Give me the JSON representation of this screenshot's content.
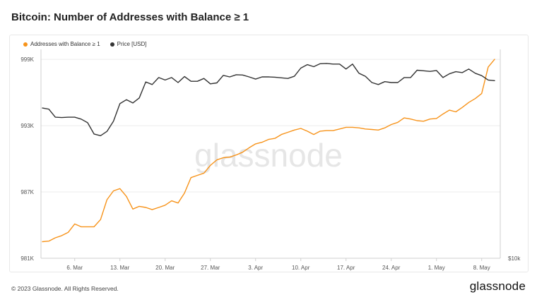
{
  "title": "Bitcoin: Number of Addresses with Balance ≥ 1",
  "footer": "© 2023 Glassnode. All Rights Reserved.",
  "brand": "glassnode",
  "watermark": "glassnode",
  "legend": [
    {
      "label": "Addresses with Balance ≥ 1",
      "color": "#f7931a"
    },
    {
      "label": "Price [USD]",
      "color": "#333333"
    }
  ],
  "chart_data": {
    "type": "line",
    "title": "Bitcoin: Number of Addresses with Balance ≥ 1",
    "x": [
      "2023-03-01",
      "2023-03-02",
      "2023-03-03",
      "2023-03-04",
      "2023-03-05",
      "2023-03-06",
      "2023-03-07",
      "2023-03-08",
      "2023-03-09",
      "2023-03-10",
      "2023-03-11",
      "2023-03-12",
      "2023-03-13",
      "2023-03-14",
      "2023-03-15",
      "2023-03-16",
      "2023-03-17",
      "2023-03-18",
      "2023-03-19",
      "2023-03-20",
      "2023-03-21",
      "2023-03-22",
      "2023-03-23",
      "2023-03-24",
      "2023-03-25",
      "2023-03-26",
      "2023-03-27",
      "2023-03-28",
      "2023-03-29",
      "2023-03-30",
      "2023-03-31",
      "2023-04-01",
      "2023-04-02",
      "2023-04-03",
      "2023-04-04",
      "2023-04-05",
      "2023-04-06",
      "2023-04-07",
      "2023-04-08",
      "2023-04-09",
      "2023-04-10",
      "2023-04-11",
      "2023-04-12",
      "2023-04-13",
      "2023-04-14",
      "2023-04-15",
      "2023-04-16",
      "2023-04-17",
      "2023-04-18",
      "2023-04-19",
      "2023-04-20",
      "2023-04-21",
      "2023-04-22",
      "2023-04-23",
      "2023-04-24",
      "2023-04-25",
      "2023-04-26",
      "2023-04-27",
      "2023-04-28",
      "2023-04-29",
      "2023-04-30",
      "2023-05-01",
      "2023-05-02",
      "2023-05-03",
      "2023-05-04",
      "2023-05-05",
      "2023-05-06",
      "2023-05-07",
      "2023-05-08",
      "2023-05-09",
      "2023-05-10"
    ],
    "x_ticks": [
      {
        "date": "2023-03-06",
        "label": "6. Mar"
      },
      {
        "date": "2023-03-13",
        "label": "13. Mar"
      },
      {
        "date": "2023-03-20",
        "label": "20. Mar"
      },
      {
        "date": "2023-03-27",
        "label": "27. Mar"
      },
      {
        "date": "2023-04-03",
        "label": "3. Apr"
      },
      {
        "date": "2023-04-10",
        "label": "10. Apr"
      },
      {
        "date": "2023-04-17",
        "label": "17. Apr"
      },
      {
        "date": "2023-04-24",
        "label": "24. Apr"
      },
      {
        "date": "2023-05-01",
        "label": "1. May"
      },
      {
        "date": "2023-05-08",
        "label": "8. May"
      }
    ],
    "y_left": {
      "ticks": [
        981000,
        987000,
        993000,
        999000
      ],
      "tick_labels": [
        "981K",
        "987K",
        "993K",
        "999K"
      ],
      "ylim": [
        981000,
        999900
      ]
    },
    "y_right": {
      "scale": "log",
      "ticks": [
        10000
      ],
      "tick_labels": [
        "$10k"
      ],
      "ylim": [
        10000,
        33000
      ]
    },
    "series": [
      {
        "name": "Addresses with Balance ≥ 1",
        "axis": "left",
        "color": "#f7931a",
        "values": [
          982500,
          982550,
          982850,
          983050,
          983350,
          984100,
          983850,
          983850,
          983850,
          984500,
          986300,
          987100,
          987300,
          986600,
          985450,
          985700,
          985600,
          985400,
          985600,
          985800,
          986200,
          986000,
          986900,
          988300,
          988500,
          988700,
          989400,
          989900,
          990100,
          990150,
          990350,
          990600,
          991000,
          991350,
          991500,
          991750,
          991850,
          992200,
          992400,
          992600,
          992750,
          992500,
          992200,
          992500,
          992550,
          992550,
          992700,
          992850,
          992850,
          992800,
          992700,
          992650,
          992600,
          992800,
          993100,
          993300,
          993700,
          993600,
          993450,
          993400,
          993600,
          993650,
          994050,
          994400,
          994250,
          994650,
          995100,
          995450,
          995900,
          998300,
          999000
        ],
        "estimated": true
      },
      {
        "name": "Price [USD]",
        "axis": "right",
        "color": "#333333",
        "values": [
          23600,
          23450,
          22400,
          22350,
          22400,
          22400,
          22150,
          21700,
          20350,
          20150,
          20650,
          21900,
          24200,
          24750,
          24300,
          25000,
          27400,
          27000,
          28100,
          27700,
          28100,
          27300,
          28250,
          27500,
          27500,
          27950,
          27100,
          27250,
          28450,
          28200,
          28550,
          28500,
          28200,
          27850,
          28200,
          28200,
          28150,
          28050,
          27950,
          28300,
          29650,
          30250,
          29900,
          30400,
          30450,
          30350,
          30350,
          29500,
          30350,
          28800,
          28300,
          27300,
          27000,
          27450,
          27300,
          27300,
          28100,
          28100,
          29300,
          29200,
          29100,
          29250,
          28100,
          28700,
          29050,
          28900,
          29500,
          28800,
          28400,
          27700,
          27600
        ],
        "estimated": true
      }
    ],
    "grid": "horizontal",
    "legend_position": "top-left"
  }
}
